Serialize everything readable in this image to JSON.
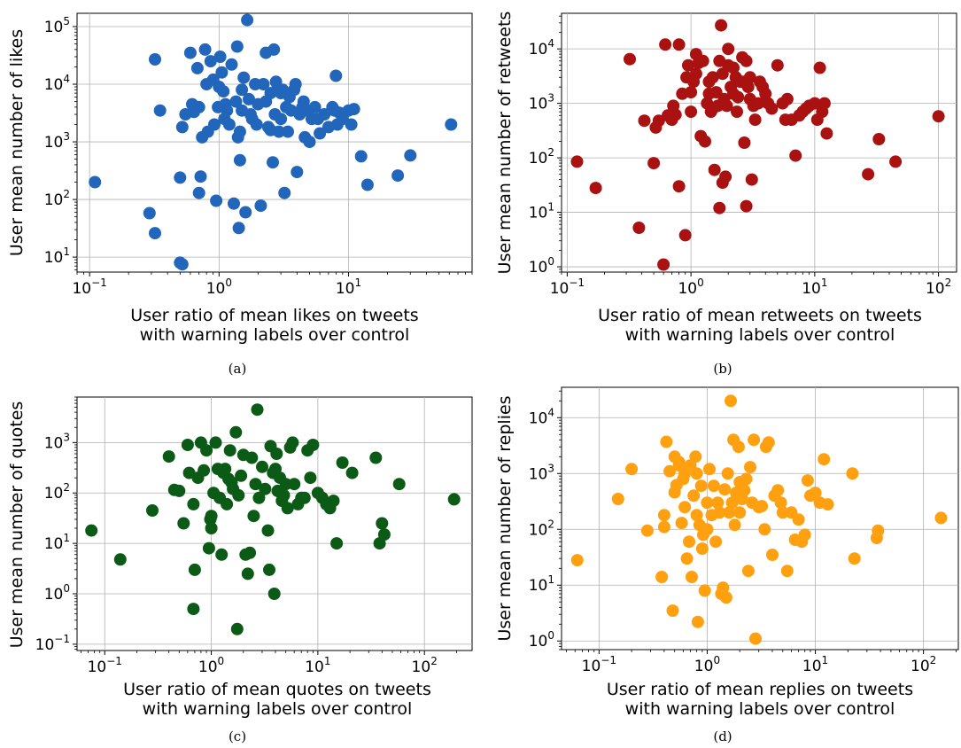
{
  "chart_data": [
    {
      "id": "a",
      "type": "scatter",
      "caption": "(a)",
      "xlabel": [
        "User ratio of mean likes on tweets",
        "with warning labels over control"
      ],
      "ylabel": "User mean number of likes",
      "xscale": "log",
      "yscale": "log",
      "xlim": [
        0.08,
        90
      ],
      "ylim": [
        5.5,
        170000
      ],
      "xticks": [
        {
          "v": 0.1,
          "b": "10",
          "e": "−1"
        },
        {
          "v": 1,
          "b": "10",
          "e": "0"
        },
        {
          "v": 10,
          "b": "10",
          "e": "1"
        }
      ],
      "yticks": [
        {
          "v": 10,
          "b": "10",
          "e": "1"
        },
        {
          "v": 100,
          "b": "10",
          "e": "2"
        },
        {
          "v": 1000,
          "b": "10",
          "e": "3"
        },
        {
          "v": 10000,
          "b": "10",
          "e": "4"
        },
        {
          "v": 100000,
          "b": "10",
          "e": "5"
        }
      ],
      "grid": true,
      "color": "#2266bb",
      "x": [
        0.11,
        0.29,
        0.32,
        0.32,
        0.35,
        0.5,
        0.5,
        0.52,
        0.52,
        0.55,
        0.6,
        0.62,
        0.64,
        0.68,
        0.7,
        0.7,
        0.72,
        0.74,
        0.78,
        0.8,
        0.82,
        0.86,
        0.9,
        0.92,
        0.95,
        0.98,
        1.0,
        1.02,
        1.05,
        1.08,
        1.1,
        1.12,
        1.15,
        1.2,
        1.25,
        1.3,
        1.35,
        1.38,
        1.4,
        1.42,
        1.45,
        1.45,
        1.5,
        1.5,
        1.55,
        1.6,
        1.65,
        1.7,
        1.75,
        1.8,
        1.9,
        1.95,
        2.0,
        2.1,
        2.2,
        2.3,
        2.3,
        2.4,
        2.5,
        2.5,
        2.6,
        2.65,
        2.7,
        2.75,
        2.8,
        2.9,
        3.0,
        3.0,
        3.1,
        3.2,
        3.3,
        3.4,
        3.5,
        3.6,
        3.8,
        3.9,
        4.0,
        4.2,
        4.4,
        4.5,
        4.6,
        4.8,
        5.0,
        5.2,
        5.5,
        5.8,
        6.0,
        6.5,
        7.0,
        7.5,
        7.8,
        8.0,
        8.2,
        8.5,
        9.0,
        10.0,
        10.5,
        11.0,
        12.5,
        14.0,
        24.0,
        30.0,
        62.0
      ],
      "y": [
        200,
        58,
        26,
        27000,
        3500,
        8,
        240,
        1800,
        7.5,
        3000,
        35000,
        4500,
        3300,
        19000,
        4000,
        130,
        250,
        1200,
        40000,
        10000,
        1500,
        25000,
        12000,
        2000,
        95,
        4000,
        9000,
        30000,
        16000,
        7500,
        2500,
        4500,
        3500,
        2000,
        22000,
        85,
        5000,
        45000,
        1200,
        32,
        1500,
        480,
        3500,
        8000,
        13000,
        60,
        130000,
        5500,
        3000,
        2500,
        10000,
        2000,
        4500,
        78,
        10000,
        35000,
        5000,
        1800,
        1600,
        7000,
        440,
        40000,
        3000,
        11000,
        8000,
        1500,
        2500,
        7000,
        8000,
        130,
        4000,
        1500,
        6000,
        3500,
        8000,
        10000,
        300,
        3000,
        4000,
        5000,
        1200,
        3500,
        1000,
        2500,
        4000,
        2500,
        1400,
        3000,
        1800,
        4000,
        3500,
        14000,
        2000,
        3200,
        2500,
        3500,
        2000,
        3700,
        560,
        180,
        260,
        580,
        2000
      ]
    },
    {
      "id": "b",
      "type": "scatter",
      "caption": "(b)",
      "xlabel": [
        "User ratio of mean retweets on tweets",
        "with warning labels over control"
      ],
      "ylabel": "User mean number of retweets",
      "xscale": "log",
      "yscale": "log",
      "xlim": [
        0.09,
        140
      ],
      "ylim": [
        0.8,
        45000
      ],
      "xticks": [
        {
          "v": 0.1,
          "b": "10",
          "e": "−1"
        },
        {
          "v": 1,
          "b": "10",
          "e": "0"
        },
        {
          "v": 10,
          "b": "10",
          "e": "1"
        },
        {
          "v": 100,
          "b": "10",
          "e": "2"
        }
      ],
      "yticks": [
        {
          "v": 1,
          "b": "10",
          "e": "0"
        },
        {
          "v": 10,
          "b": "10",
          "e": "1"
        },
        {
          "v": 100,
          "b": "10",
          "e": "2"
        },
        {
          "v": 1000,
          "b": "10",
          "e": "3"
        },
        {
          "v": 10000,
          "b": "10",
          "e": "4"
        }
      ],
      "grid": true,
      "color": "#aa1111",
      "x": [
        0.12,
        0.17,
        0.32,
        0.38,
        0.42,
        0.5,
        0.52,
        0.55,
        0.6,
        0.62,
        0.65,
        0.7,
        0.72,
        0.75,
        0.8,
        0.8,
        0.85,
        0.9,
        0.92,
        0.95,
        1.0,
        1.0,
        1.05,
        1.1,
        1.1,
        1.15,
        1.2,
        1.25,
        1.3,
        1.35,
        1.4,
        1.4,
        1.45,
        1.5,
        1.5,
        1.55,
        1.6,
        1.65,
        1.7,
        1.7,
        1.75,
        1.8,
        1.8,
        1.85,
        1.9,
        1.95,
        2.0,
        2.0,
        2.1,
        2.2,
        2.2,
        2.3,
        2.35,
        2.4,
        2.5,
        2.6,
        2.6,
        2.7,
        2.8,
        2.8,
        2.9,
        3.0,
        3.0,
        3.1,
        3.2,
        3.3,
        3.5,
        3.6,
        3.8,
        4.0,
        4.2,
        4.5,
        5.0,
        5.5,
        5.8,
        6.0,
        6.5,
        7.0,
        7.5,
        8.0,
        8.5,
        9.0,
        10.0,
        10.5,
        11.0,
        11.5,
        12.0,
        12.5,
        27.0,
        33.0,
        45.0,
        100.0
      ],
      "y": [
        85,
        28,
        6500,
        5.2,
        480,
        80,
        360,
        480,
        1.1,
        12000,
        600,
        500,
        900,
        620,
        30,
        12000,
        1500,
        3.8,
        3000,
        5000,
        1600,
        700,
        2500,
        3500,
        8000,
        5500,
        250,
        6000,
        200,
        1000,
        1500,
        2500,
        700,
        800,
        3000,
        60,
        1600,
        900,
        12,
        6000,
        27000,
        35,
        3500,
        1200,
        45,
        900,
        10000,
        5000,
        2000,
        4500,
        1500,
        3000,
        700,
        1300,
        2500,
        2500,
        7000,
        190,
        6000,
        13,
        2000,
        1200,
        3000,
        40,
        900,
        500,
        1000,
        2500,
        2000,
        1500,
        1000,
        800,
        5000,
        1000,
        500,
        1200,
        500,
        110,
        600,
        700,
        800,
        900,
        1000,
        500,
        4500,
        700,
        1000,
        280,
        50,
        220,
        85,
        580
      ]
    },
    {
      "id": "c",
      "type": "scatter",
      "caption": "(c)",
      "xlabel": [
        "User ratio of mean quotes on tweets",
        "with warning labels over control"
      ],
      "ylabel": "User mean number of quotes",
      "xscale": "log",
      "yscale": "log",
      "xlim": [
        0.055,
        280
      ],
      "ylim": [
        0.075,
        8000
      ],
      "xticks": [
        {
          "v": 0.1,
          "b": "10",
          "e": "−1"
        },
        {
          "v": 1,
          "b": "10",
          "e": "0"
        },
        {
          "v": 10,
          "b": "10",
          "e": "1"
        },
        {
          "v": 100,
          "b": "10",
          "e": "2"
        }
      ],
      "yticks": [
        {
          "v": 0.1,
          "b": "10",
          "e": "−1"
        },
        {
          "v": 1,
          "b": "10",
          "e": "0"
        },
        {
          "v": 10,
          "b": "10",
          "e": "1"
        },
        {
          "v": 100,
          "b": "10",
          "e": "2"
        },
        {
          "v": 1000,
          "b": "10",
          "e": "3"
        }
      ],
      "grid": true,
      "color": "#0b5a16",
      "x": [
        0.075,
        0.14,
        0.28,
        0.4,
        0.45,
        0.5,
        0.55,
        0.6,
        0.62,
        0.68,
        0.68,
        0.7,
        0.75,
        0.8,
        0.85,
        0.9,
        0.95,
        0.98,
        1.0,
        1.0,
        1.05,
        1.1,
        1.15,
        1.2,
        1.25,
        1.3,
        1.35,
        1.4,
        1.45,
        1.5,
        1.55,
        1.6,
        1.7,
        1.75,
        1.8,
        1.9,
        2.0,
        2.1,
        2.2,
        2.3,
        2.4,
        2.5,
        2.6,
        2.7,
        2.8,
        3.0,
        3.2,
        3.4,
        3.5,
        3.6,
        3.8,
        3.9,
        4.0,
        4.1,
        4.2,
        4.4,
        4.5,
        4.6,
        4.8,
        5.0,
        5.2,
        5.5,
        5.8,
        6.0,
        6.5,
        7.0,
        7.5,
        8.0,
        8.5,
        9.0,
        10.0,
        11.0,
        12.0,
        13.0,
        14.0,
        15.0,
        17.0,
        21.0,
        35.0,
        38.0,
        40.0,
        42.0,
        58.0,
        190.0
      ],
      "y": [
        18,
        4.8,
        45,
        530,
        115,
        110,
        25,
        900,
        250,
        60,
        0.5,
        3,
        200,
        1000,
        280,
        700,
        8,
        30,
        20,
        35,
        100,
        1000,
        300,
        80,
        6,
        250,
        300,
        60,
        190,
        700,
        160,
        120,
        1600,
        0.2,
        90,
        220,
        570,
        6,
        2.5,
        6.5,
        500,
        35,
        150,
        4500,
        80,
        330,
        120,
        18,
        3,
        850,
        250,
        1.0,
        300,
        600,
        110,
        200,
        100,
        70,
        90,
        150,
        50,
        800,
        1000,
        150,
        60,
        80,
        80,
        700,
        200,
        900,
        100,
        80,
        60,
        50,
        70,
        10,
        400,
        250,
        500,
        10,
        25,
        15,
        150,
        75
      ]
    },
    {
      "id": "d",
      "type": "scatter",
      "caption": "(d)",
      "xlabel": [
        "User ratio of mean replies on tweets",
        "with warning labels over control"
      ],
      "ylabel": "User mean number of replies",
      "xscale": "log",
      "yscale": "log",
      "xlim": [
        0.045,
        210
      ],
      "ylim": [
        0.7,
        35000
      ],
      "xticks": [
        {
          "v": 0.1,
          "b": "10",
          "e": "−1"
        },
        {
          "v": 1,
          "b": "10",
          "e": "0"
        },
        {
          "v": 10,
          "b": "10",
          "e": "1"
        },
        {
          "v": 100,
          "b": "10",
          "e": "2"
        }
      ],
      "yticks": [
        {
          "v": 1,
          "b": "10",
          "e": "0"
        },
        {
          "v": 10,
          "b": "10",
          "e": "1"
        },
        {
          "v": 100,
          "b": "10",
          "e": "2"
        },
        {
          "v": 1000,
          "b": "10",
          "e": "3"
        },
        {
          "v": 10000,
          "b": "10",
          "e": "4"
        }
      ],
      "grid": true,
      "color": "#ffa010",
      "x": [
        0.063,
        0.15,
        0.2,
        0.28,
        0.38,
        0.4,
        0.4,
        0.42,
        0.45,
        0.48,
        0.5,
        0.5,
        0.52,
        0.55,
        0.55,
        0.58,
        0.6,
        0.62,
        0.62,
        0.65,
        0.68,
        0.7,
        0.72,
        0.75,
        0.78,
        0.8,
        0.8,
        0.82,
        0.85,
        0.88,
        0.9,
        0.92,
        0.95,
        1.0,
        1.0,
        1.05,
        1.1,
        1.15,
        1.2,
        1.25,
        1.3,
        1.35,
        1.4,
        1.45,
        1.5,
        1.55,
        1.6,
        1.65,
        1.7,
        1.75,
        1.8,
        1.85,
        1.9,
        1.95,
        2.0,
        2.0,
        2.1,
        2.2,
        2.3,
        2.4,
        2.5,
        2.6,
        2.7,
        2.8,
        3.0,
        3.2,
        3.4,
        3.5,
        3.7,
        4.0,
        4.2,
        4.5,
        4.8,
        5.0,
        5.5,
        6.0,
        6.5,
        7.0,
        7.5,
        8.0,
        8.5,
        9.0,
        10.0,
        11.0,
        12.0,
        13.0,
        22.0,
        23.0,
        37.0,
        38.0,
        145.0
      ],
      "y": [
        28,
        350,
        1200,
        95,
        14,
        180,
        110,
        3700,
        1100,
        3.5,
        460,
        2000,
        620,
        1600,
        1400,
        130,
        800,
        250,
        1000,
        30,
        60,
        1400,
        14,
        400,
        2000,
        180,
        1000,
        2.2,
        120,
        600,
        45,
        80,
        8,
        300,
        100,
        1200,
        180,
        600,
        60,
        300,
        200,
        7,
        9,
        520,
        6,
        1000,
        200,
        20000,
        300,
        4000,
        120,
        450,
        400,
        3000,
        700,
        200,
        350,
        500,
        800,
        18,
        1300,
        300,
        4000,
        1.1,
        250,
        260,
        100,
        3000,
        3600,
        35,
        400,
        500,
        300,
        200,
        18,
        200,
        65,
        150,
        60,
        80,
        750,
        400,
        450,
        300,
        1800,
        280,
        1000,
        30,
        70,
        95,
        160
      ]
    }
  ]
}
